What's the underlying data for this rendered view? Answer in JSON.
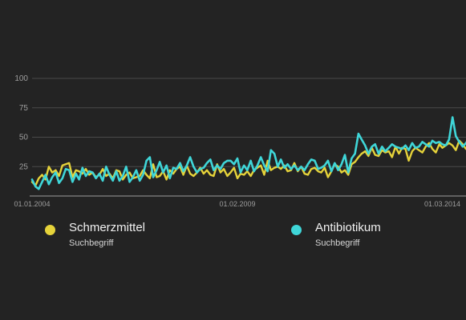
{
  "colors": {
    "background": "#232323",
    "grid": "#4a4a4a",
    "axis": "#9e9e9e",
    "series_1": "#e6d33a",
    "series_2": "#3fd6d8"
  },
  "legend": [
    {
      "name": "Schmerzmittel",
      "subtitle": "Suchbegriff",
      "color": "#e6d33a"
    },
    {
      "name": "Antibiotikum",
      "subtitle": "Suchbegriff",
      "color": "#3fd6d8"
    }
  ],
  "chart_data": {
    "type": "line",
    "grid": true,
    "legend_position": "bottom",
    "x_range": [
      "2004-01-01",
      "2014-10-01"
    ],
    "ylim": [
      0,
      100
    ],
    "y_ticks": [
      25,
      50,
      75,
      100
    ],
    "x_ticks": [
      "01.01.2004",
      "01.02.2009",
      "01.03.2014"
    ],
    "x_tick_dates": [
      "2004-01-01",
      "2009-02-01",
      "2014-03-01"
    ],
    "x_start": "2004-01-01",
    "series": [
      {
        "name": "Schmerzmittel",
        "color": "#e6d33a",
        "values": [
          12,
          9,
          15,
          18,
          14,
          25,
          20,
          22,
          17,
          26,
          27,
          28,
          16,
          22,
          21,
          19,
          23,
          18,
          20,
          16,
          18,
          23,
          17,
          19,
          15,
          22,
          21,
          14,
          18,
          20,
          15,
          16,
          17,
          22,
          18,
          15,
          27,
          16,
          17,
          21,
          14,
          22,
          19,
          23,
          25,
          18,
          26,
          19,
          17,
          20,
          24,
          19,
          22,
          18,
          17,
          27,
          20,
          23,
          17,
          20,
          24,
          15,
          19,
          18,
          21,
          17,
          22,
          24,
          26,
          18,
          30,
          22,
          24,
          25,
          23,
          26,
          21,
          22,
          28,
          21,
          25,
          19,
          18,
          23,
          24,
          21,
          20,
          24,
          16,
          21,
          27,
          25,
          20,
          22,
          18,
          27,
          29,
          33,
          36,
          38,
          34,
          41,
          35,
          34,
          39,
          37,
          38,
          33,
          42,
          36,
          41,
          40,
          30,
          38,
          41,
          39,
          37,
          42,
          45,
          40,
          37,
          44,
          41,
          43,
          45,
          43,
          39,
          47,
          44,
          40,
          45,
          43,
          47,
          48,
          44,
          49,
          45,
          48,
          53,
          50,
          47,
          55,
          54,
          50,
          57,
          51,
          56,
          53,
          55,
          50,
          54,
          56,
          59,
          58,
          47
        ]
      },
      {
        "name": "Antibiotikum",
        "color": "#3fd6d8",
        "values": [
          14,
          8,
          6,
          12,
          18,
          10,
          16,
          20,
          11,
          15,
          23,
          22,
          12,
          19,
          14,
          24,
          17,
          21,
          20,
          15,
          19,
          13,
          25,
          18,
          13,
          21,
          13,
          17,
          25,
          12,
          16,
          22,
          13,
          18,
          30,
          33,
          16,
          22,
          29,
          20,
          26,
          15,
          24,
          23,
          28,
          21,
          26,
          33,
          25,
          20,
          23,
          24,
          28,
          31,
          22,
          26,
          23,
          28,
          30,
          30,
          27,
          32,
          20,
          26,
          22,
          30,
          21,
          26,
          33,
          26,
          21,
          39,
          36,
          25,
          31,
          24,
          27,
          23,
          26,
          22,
          25,
          22,
          27,
          31,
          30,
          23,
          24,
          26,
          30,
          21,
          28,
          22,
          27,
          35,
          20,
          32,
          36,
          53,
          48,
          43,
          36,
          42,
          44,
          36,
          42,
          38,
          41,
          44,
          42,
          41,
          40,
          43,
          39,
          45,
          41,
          42,
          46,
          44,
          42,
          47,
          45,
          46,
          44,
          43,
          48,
          67,
          51,
          46,
          42,
          45,
          50,
          47,
          44,
          52,
          49,
          48,
          56,
          53,
          51,
          57,
          55,
          52,
          57,
          56,
          51,
          54,
          55,
          60,
          58,
          62,
          53,
          59,
          57,
          54,
          64
        ]
      }
    ]
  }
}
